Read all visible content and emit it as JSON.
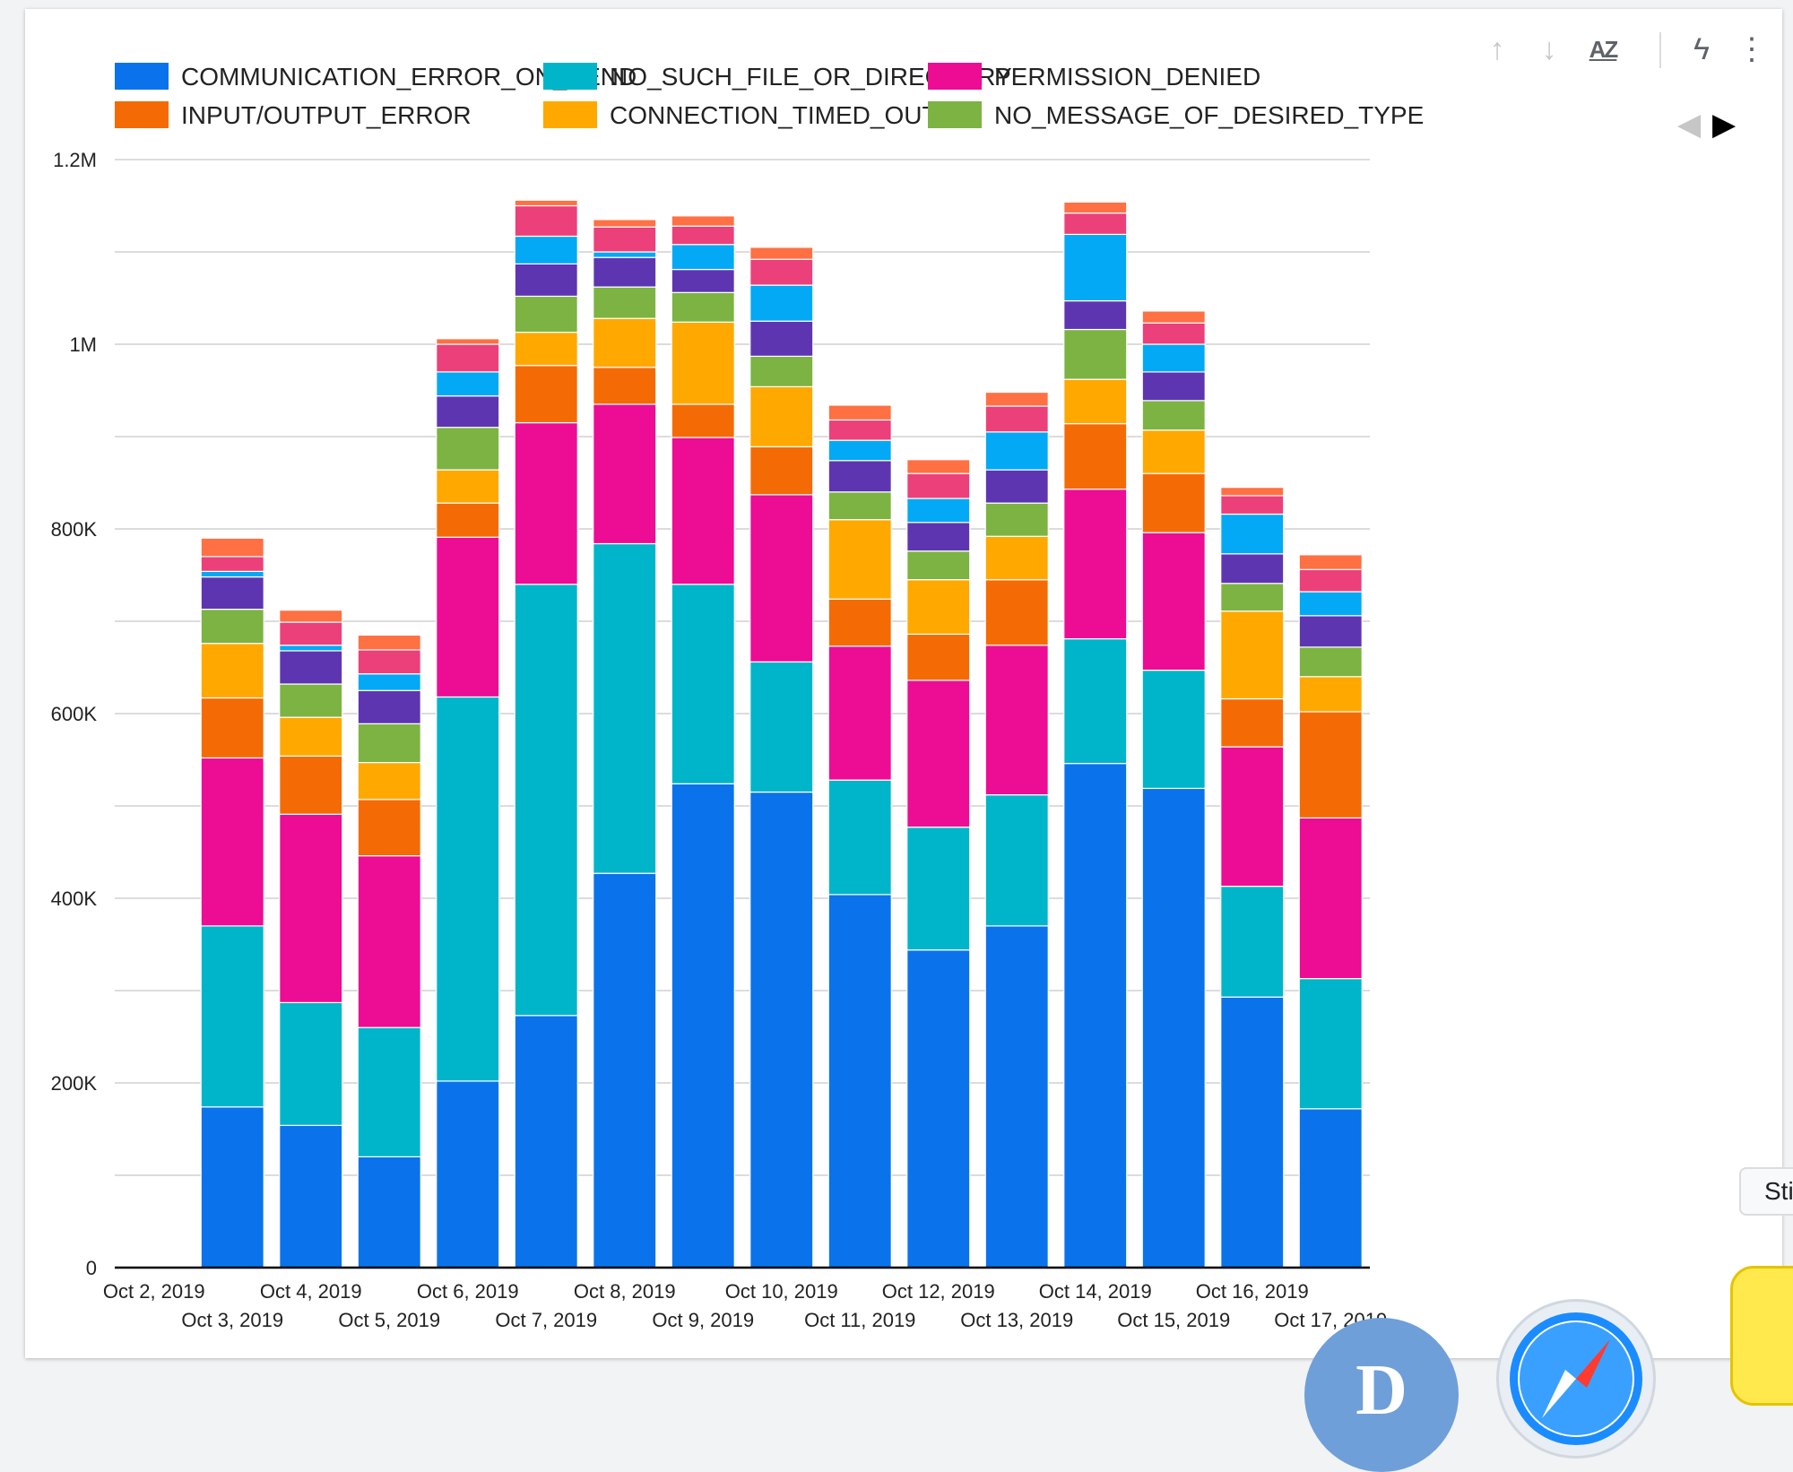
{
  "toolbar": {
    "sort_ascending": "↑",
    "sort_descending": "↓",
    "sort_az": "AZ",
    "explore": "ϟ",
    "more": "⋮"
  },
  "legend_nav": {
    "prev": "◀",
    "next": "▶"
  },
  "side_tab": {
    "label": "Sti"
  },
  "dock": {
    "d_icon_letter": "D"
  },
  "colors": {
    "COMMUNICATION_ERROR_ON_SEND": "#0a73eb",
    "NO_SUCH_FILE_OR_DIRECTORY": "#00b5c9",
    "PERMISSION_DENIED": "#ed0c94",
    "INPUT/OUTPUT_ERROR": "#f46b06",
    "CONNECTION_TIMED_OUT": "#ffa800",
    "NO_MESSAGE_OF_DESIRED_TYPE": "#7cb342",
    "extra_1": "#5e35b1",
    "extra_2": "#03a9f4",
    "extra_3": "#ec407a",
    "extra_4": "#ff7043"
  },
  "chart_data": {
    "type": "bar",
    "stacked": true,
    "title": "",
    "xlabel": "",
    "ylabel": "",
    "ylim": [
      0,
      1200000
    ],
    "yticks": [
      0,
      200000,
      400000,
      600000,
      800000,
      1000000,
      1200000
    ],
    "ytick_labels": [
      "0",
      "200K",
      "400K",
      "600K",
      "800K",
      "1M",
      "1.2M"
    ],
    "grid": true,
    "legend_position": "top",
    "categories": [
      "Oct 2, 2019",
      "Oct 3, 2019",
      "Oct 4, 2019",
      "Oct 5, 2019",
      "Oct 6, 2019",
      "Oct 7, 2019",
      "Oct 8, 2019",
      "Oct 9, 2019",
      "Oct 10, 2019",
      "Oct 11, 2019",
      "Oct 12, 2019",
      "Oct 13, 2019",
      "Oct 14, 2019",
      "Oct 15, 2019",
      "Oct 16, 2019",
      "Oct 17, 2019"
    ],
    "series": [
      {
        "name": "COMMUNICATION_ERROR_ON_SEND",
        "values": [
          500,
          174000,
          154000,
          120000,
          202000,
          273000,
          427000,
          524000,
          515000,
          404000,
          344000,
          370000,
          546000,
          519000,
          293000,
          172000
        ]
      },
      {
        "name": "NO_SUCH_FILE_OR_DIRECTORY",
        "values": [
          300,
          196000,
          133000,
          140000,
          416000,
          467000,
          357000,
          216000,
          141000,
          124000,
          133000,
          142000,
          135000,
          128000,
          120000,
          141000
        ]
      },
      {
        "name": "PERMISSION_DENIED",
        "values": [
          300,
          182000,
          204000,
          186000,
          173000,
          175000,
          151000,
          159000,
          181000,
          145000,
          159000,
          162000,
          162000,
          149000,
          151000,
          174000
        ]
      },
      {
        "name": "INPUT/OUTPUT_ERROR",
        "values": [
          200,
          65000,
          63000,
          61000,
          37000,
          62000,
          40000,
          36000,
          52000,
          51000,
          50000,
          71000,
          71000,
          64000,
          52000,
          115000
        ]
      },
      {
        "name": "CONNECTION_TIMED_OUT",
        "values": [
          100,
          59000,
          42000,
          40000,
          36000,
          36000,
          53000,
          89000,
          65000,
          86000,
          59000,
          47000,
          48000,
          47000,
          95000,
          38000
        ]
      },
      {
        "name": "NO_MESSAGE_OF_DESIRED_TYPE",
        "values": [
          100,
          37000,
          36000,
          42000,
          46000,
          39000,
          34000,
          32000,
          33000,
          30000,
          31000,
          36000,
          54000,
          32000,
          30000,
          32000
        ]
      },
      {
        "name": "",
        "values": [
          0,
          35000,
          36000,
          36000,
          34000,
          35000,
          32000,
          25000,
          38000,
          34000,
          31000,
          36000,
          31000,
          31000,
          32000,
          34000
        ]
      },
      {
        "name": "",
        "values": [
          0,
          6000,
          6000,
          18000,
          26000,
          30000,
          6000,
          27000,
          39000,
          22000,
          26000,
          41000,
          72000,
          30000,
          43000,
          26000
        ]
      },
      {
        "name": "",
        "values": [
          0,
          16000,
          25000,
          26000,
          30000,
          33000,
          27000,
          20000,
          28000,
          22000,
          27000,
          28000,
          23000,
          23000,
          20000,
          24000
        ]
      },
      {
        "name": "",
        "values": [
          0,
          20000,
          13000,
          16000,
          6000,
          6000,
          8000,
          11000,
          13000,
          16000,
          15000,
          15000,
          12000,
          13000,
          9000,
          16000
        ]
      }
    ]
  }
}
